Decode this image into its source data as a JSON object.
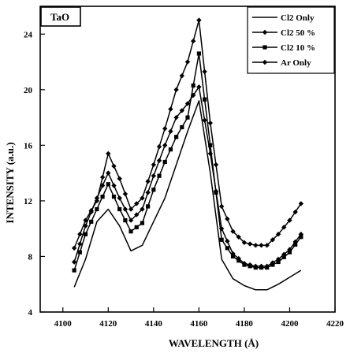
{
  "chart_data": {
    "type": "line",
    "tag": "TaO",
    "xlabel": "WAVELENGTH (Å)",
    "ylabel": "INTENSITY (a.u.)",
    "xlim": [
      4090,
      4220
    ],
    "ylim": [
      4,
      26
    ],
    "xticks": [
      4100,
      4120,
      4140,
      4160,
      4180,
      4200,
      4220
    ],
    "yticks": [
      4,
      8,
      12,
      16,
      20,
      24
    ],
    "legend_position": "top-right",
    "x": [
      4105,
      4110,
      4115,
      4120,
      4125,
      4130,
      4135,
      4140,
      4145,
      4150,
      4155,
      4160,
      4165,
      4170,
      4175,
      4180,
      4185,
      4190,
      4195,
      4200,
      4205
    ],
    "series": [
      {
        "name": "Cl2 Only",
        "marker": "none",
        "values": [
          5.8,
          7.8,
          10.5,
          11.4,
          10.2,
          8.4,
          8.8,
          10.5,
          12.2,
          14.6,
          17.0,
          19.2,
          14.0,
          7.8,
          6.4,
          5.9,
          5.6,
          5.6,
          6.0,
          6.5,
          7.0
        ]
      },
      {
        "name": "Cl2 50 %",
        "marker": "diamond",
        "values": [
          7.6,
          10.2,
          12.2,
          14.0,
          12.2,
          10.6,
          11.4,
          13.8,
          16.0,
          18.0,
          19.0,
          20.2,
          15.4,
          10.0,
          8.2,
          7.5,
          7.3,
          7.3,
          7.8,
          8.5,
          9.6
        ]
      },
      {
        "name": "Cl2 10 %",
        "marker": "square",
        "values": [
          7.0,
          9.6,
          11.4,
          13.2,
          11.4,
          9.8,
          10.4,
          12.8,
          14.8,
          16.6,
          18.0,
          22.6,
          16.0,
          9.2,
          8.0,
          7.4,
          7.2,
          7.2,
          7.6,
          8.3,
          9.4
        ]
      },
      {
        "name": "Ar Only",
        "marker": "diamond",
        "values": [
          8.6,
          10.6,
          12.0,
          15.4,
          13.6,
          11.4,
          12.2,
          14.6,
          17.2,
          20.0,
          22.0,
          25.0,
          17.6,
          11.6,
          9.8,
          9.0,
          8.8,
          8.8,
          9.6,
          10.6,
          11.8
        ]
      }
    ]
  }
}
